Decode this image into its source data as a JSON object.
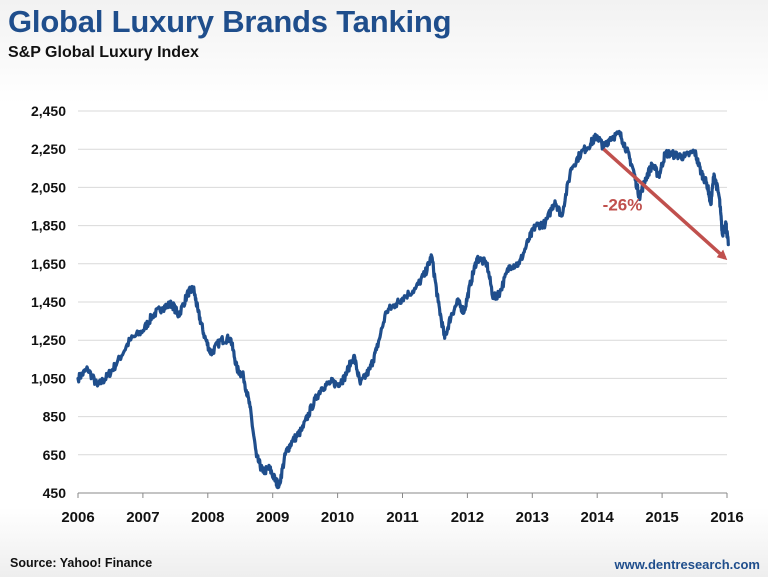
{
  "header": {
    "title": "Global Luxury Brands Tanking",
    "subtitle": "S&P Global Luxury Index"
  },
  "footer": {
    "source": "Source: Yahoo! Finance",
    "website": "www.dentresearch.com"
  },
  "colors": {
    "title": "#1f4e8c",
    "line": "#1f4e8c",
    "annotation": "#c0504d",
    "grid": "#d9d9d9"
  },
  "chart_data": {
    "type": "line",
    "title": "Global Luxury Brands Tanking",
    "subtitle": "S&P Global Luxury Index",
    "xlabel": "",
    "ylabel": "",
    "xlim": [
      2006,
      2016
    ],
    "ylim": [
      450,
      2450
    ],
    "yticks": [
      450,
      650,
      850,
      1050,
      1250,
      1450,
      1650,
      1850,
      2050,
      2250,
      2450
    ],
    "ytick_labels": [
      "450",
      "650",
      "850",
      "1,050",
      "1,250",
      "1,450",
      "1,650",
      "1,850",
      "2,050",
      "2,250",
      "2,450"
    ],
    "xticks": [
      2006,
      2007,
      2008,
      2009,
      2010,
      2011,
      2012,
      2013,
      2014,
      2015,
      2016
    ],
    "xtick_labels": [
      "2006",
      "2007",
      "2008",
      "2009",
      "2010",
      "2011",
      "2012",
      "2013",
      "2014",
      "2015",
      "2016"
    ],
    "grid": true,
    "series": [
      {
        "values": [
          [
            2006.0,
            1050
          ],
          [
            2006.15,
            1100
          ],
          [
            2006.3,
            1010
          ],
          [
            2006.45,
            1060
          ],
          [
            2006.6,
            1130
          ],
          [
            2006.8,
            1250
          ],
          [
            2007.0,
            1300
          ],
          [
            2007.15,
            1380
          ],
          [
            2007.3,
            1420
          ],
          [
            2007.45,
            1440
          ],
          [
            2007.55,
            1380
          ],
          [
            2007.7,
            1500
          ],
          [
            2007.78,
            1520
          ],
          [
            2007.85,
            1400
          ],
          [
            2007.95,
            1270
          ],
          [
            2008.05,
            1180
          ],
          [
            2008.2,
            1250
          ],
          [
            2008.35,
            1260
          ],
          [
            2008.45,
            1100
          ],
          [
            2008.55,
            1060
          ],
          [
            2008.65,
            900
          ],
          [
            2008.75,
            640
          ],
          [
            2008.85,
            560
          ],
          [
            2008.95,
            580
          ],
          [
            2009.05,
            510
          ],
          [
            2009.1,
            490
          ],
          [
            2009.2,
            660
          ],
          [
            2009.3,
            720
          ],
          [
            2009.45,
            780
          ],
          [
            2009.6,
            900
          ],
          [
            2009.75,
            1000
          ],
          [
            2009.9,
            1030
          ],
          [
            2010.0,
            1020
          ],
          [
            2010.1,
            1050
          ],
          [
            2010.25,
            1170
          ],
          [
            2010.35,
            1020
          ],
          [
            2010.5,
            1100
          ],
          [
            2010.6,
            1200
          ],
          [
            2010.75,
            1400
          ],
          [
            2010.9,
            1440
          ],
          [
            2011.0,
            1470
          ],
          [
            2011.2,
            1520
          ],
          [
            2011.35,
            1600
          ],
          [
            2011.45,
            1690
          ],
          [
            2011.55,
            1450
          ],
          [
            2011.65,
            1260
          ],
          [
            2011.75,
            1380
          ],
          [
            2011.85,
            1450
          ],
          [
            2011.95,
            1400
          ],
          [
            2012.05,
            1550
          ],
          [
            2012.15,
            1680
          ],
          [
            2012.3,
            1650
          ],
          [
            2012.4,
            1470
          ],
          [
            2012.5,
            1500
          ],
          [
            2012.65,
            1640
          ],
          [
            2012.8,
            1650
          ],
          [
            2012.95,
            1780
          ],
          [
            2013.05,
            1850
          ],
          [
            2013.2,
            1860
          ],
          [
            2013.35,
            1980
          ],
          [
            2013.45,
            1900
          ],
          [
            2013.6,
            2150
          ],
          [
            2013.75,
            2230
          ],
          [
            2013.9,
            2280
          ],
          [
            2014.0,
            2320
          ],
          [
            2014.1,
            2260
          ],
          [
            2014.2,
            2310
          ],
          [
            2014.35,
            2330
          ],
          [
            2014.45,
            2250
          ],
          [
            2014.55,
            2150
          ],
          [
            2014.65,
            2000
          ],
          [
            2014.75,
            2100
          ],
          [
            2014.85,
            2170
          ],
          [
            2014.95,
            2110
          ],
          [
            2015.05,
            2230
          ],
          [
            2015.2,
            2220
          ],
          [
            2015.35,
            2210
          ],
          [
            2015.5,
            2240
          ],
          [
            2015.6,
            2130
          ],
          [
            2015.7,
            2060
          ],
          [
            2015.75,
            1960
          ],
          [
            2015.8,
            2120
          ],
          [
            2015.88,
            2000
          ],
          [
            2015.93,
            1800
          ],
          [
            2015.98,
            1870
          ],
          [
            2016.02,
            1750
          ]
        ]
      }
    ],
    "annotation": {
      "text": "-26%",
      "from": [
        2014.1,
        2250
      ],
      "to": [
        2015.97,
        1680
      ]
    }
  }
}
